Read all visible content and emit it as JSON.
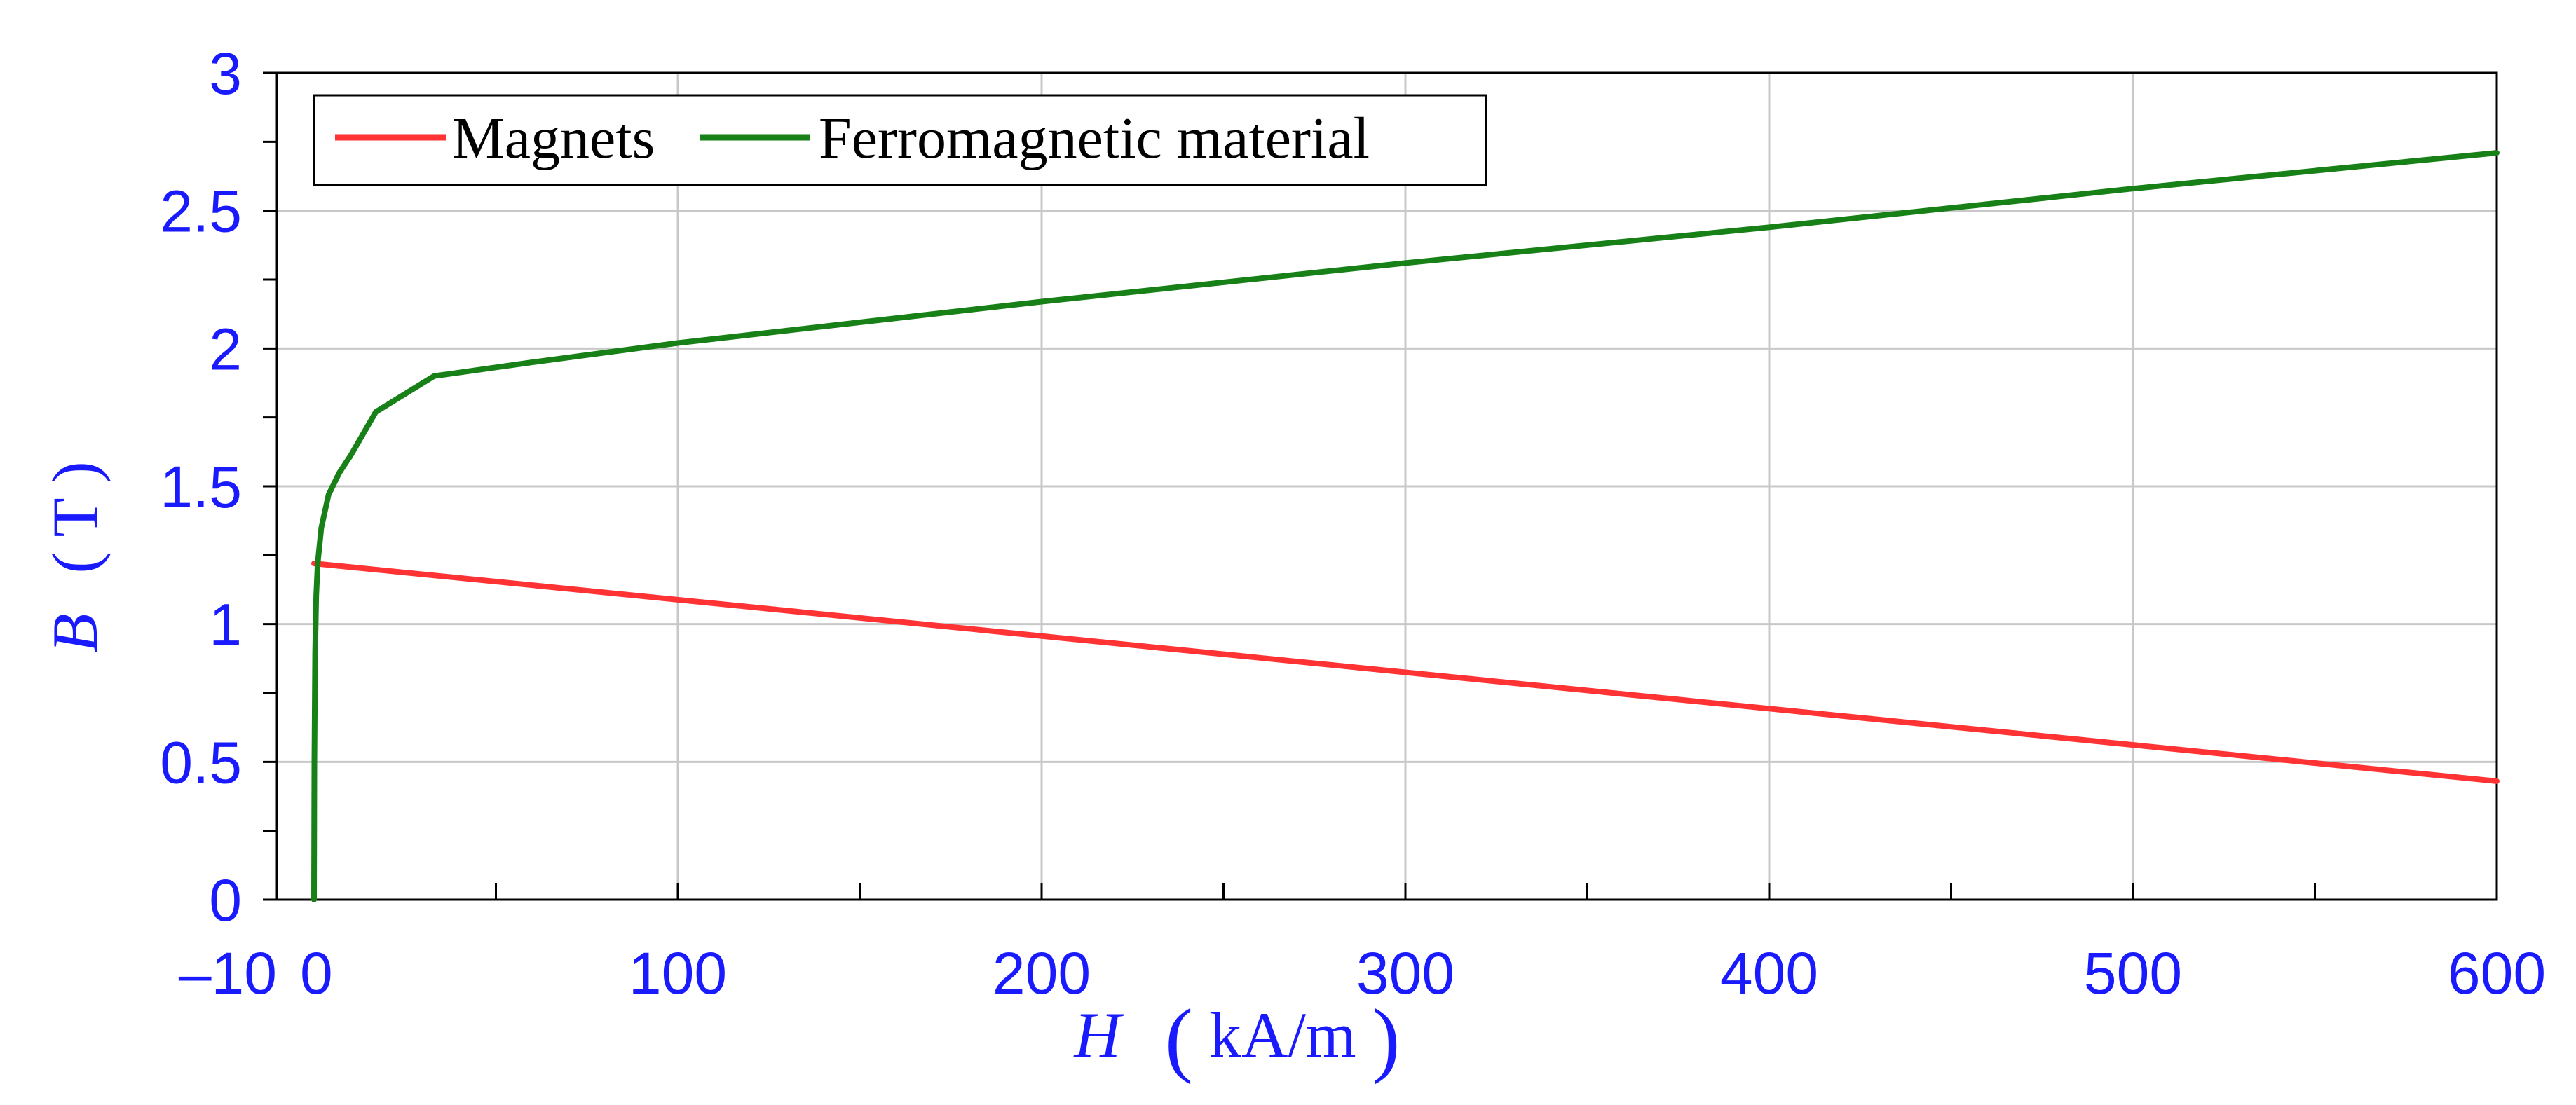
{
  "chart_data": {
    "type": "line",
    "title": "",
    "xlabel": {
      "symbol": "H",
      "unit": "kA/m"
    },
    "ylabel": {
      "symbol": "B",
      "unit": "T"
    },
    "xlim": [
      -10,
      600
    ],
    "ylim": [
      0,
      3
    ],
    "x_ticks": [
      0,
      100,
      200,
      300,
      400,
      500,
      600
    ],
    "x_tick_labels": [
      "0",
      "100",
      "200",
      "300",
      "400",
      "500",
      "600"
    ],
    "x_minor_ticks": [
      50,
      150,
      250,
      350,
      450,
      550
    ],
    "x_min_label": "–10",
    "y_ticks": [
      0,
      0.5,
      1,
      1.5,
      2,
      2.5,
      3
    ],
    "y_tick_labels": [
      "0",
      "0.5",
      "1",
      "1.5",
      "2",
      "2.5",
      "3"
    ],
    "y_minor_ticks": [
      0.25,
      0.75,
      1.25,
      1.75,
      2.25,
      2.75
    ],
    "grid": true,
    "legend_position": "top-left",
    "series": [
      {
        "name": "Magnets",
        "color": "#ff3333",
        "x": [
          0,
          600
        ],
        "y": [
          1.22,
          0.43
        ]
      },
      {
        "name": "Ferromagnetic material",
        "color": "#178017",
        "x": [
          0,
          0.1,
          0.3,
          0.6,
          1,
          2,
          4,
          7,
          10,
          17,
          33,
          60,
          100,
          200,
          300,
          400,
          500,
          600
        ],
        "y": [
          0,
          0.5,
          0.9,
          1.1,
          1.22,
          1.35,
          1.47,
          1.55,
          1.61,
          1.77,
          1.9,
          1.95,
          2.02,
          2.17,
          2.31,
          2.44,
          2.58,
          2.71
        ]
      }
    ]
  },
  "colors": {
    "axis_text": "#1a1aff",
    "grid": "#c8c8c8",
    "frame": "#000000"
  }
}
